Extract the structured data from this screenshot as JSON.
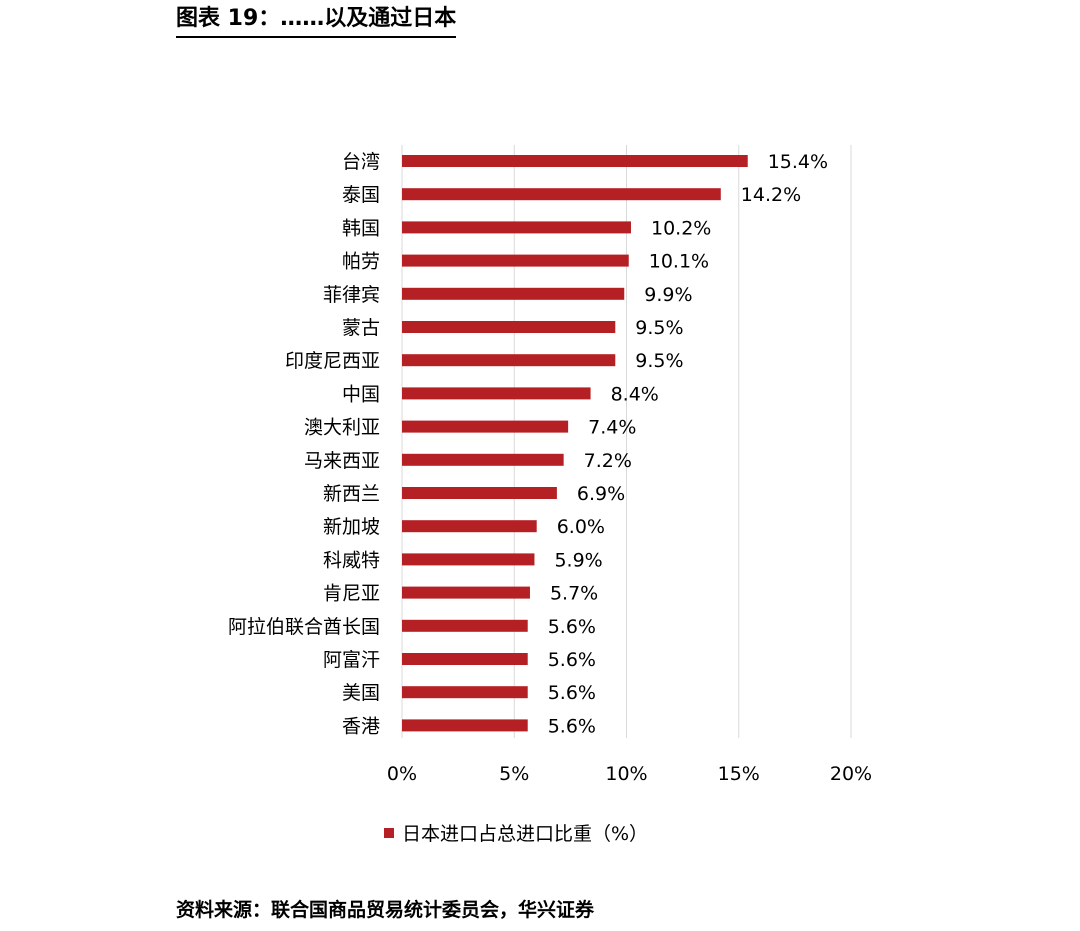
{
  "figure_title": "图表 19：……以及通过日本",
  "source": "资料来源：联合国商品贸易统计委员会，华兴证券",
  "colors": {
    "bar": "#b52025",
    "grid": "#d9d9d9",
    "text": "#000000"
  },
  "chart_data": {
    "type": "bar",
    "orientation": "horizontal",
    "categories": [
      "台湾",
      "泰国",
      "韩国",
      "帕劳",
      "菲律宾",
      "蒙古",
      "印度尼西亚",
      "中国",
      "澳大利亚",
      "马来西亚",
      "新西兰",
      "新加坡",
      "科威特",
      "肯尼亚",
      "阿拉伯联合酋长国",
      "阿富汗",
      "美国",
      "香港"
    ],
    "series": [
      {
        "name": "日本进口占总进口比重（%）",
        "values": [
          15.4,
          14.2,
          10.2,
          10.1,
          9.9,
          9.5,
          9.5,
          8.4,
          7.4,
          7.2,
          6.9,
          6.0,
          5.9,
          5.7,
          5.6,
          5.6,
          5.6,
          5.6
        ],
        "value_labels": [
          "15.4%",
          "14.2%",
          "10.2%",
          "10.1%",
          "9.9%",
          "9.5%",
          "9.5%",
          "8.4%",
          "7.4%",
          "7.2%",
          "6.9%",
          "6.0%",
          "5.9%",
          "5.7%",
          "5.6%",
          "5.6%",
          "5.6%",
          "5.6%"
        ]
      }
    ],
    "xlim": [
      0,
      20
    ],
    "x_ticks": [
      0,
      5,
      10,
      15,
      20
    ],
    "x_tick_labels": [
      "0%",
      "5%",
      "10%",
      "15%",
      "20%"
    ],
    "grid": "vertical",
    "legend_position": "bottom"
  }
}
